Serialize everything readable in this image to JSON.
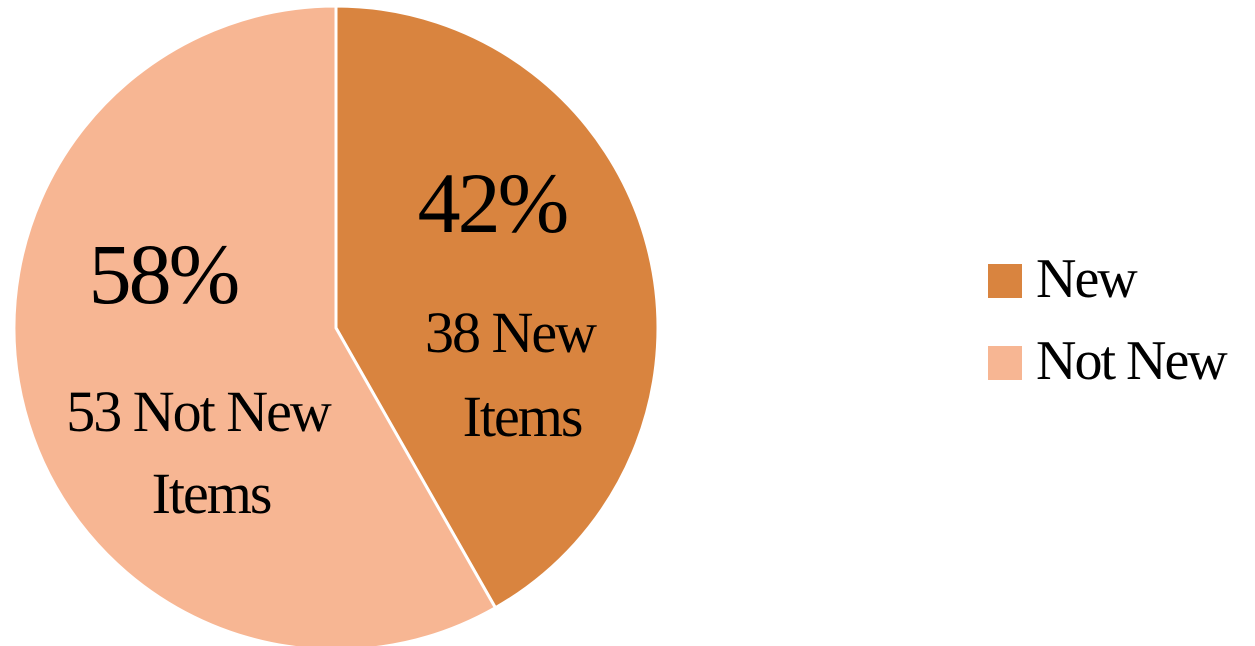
{
  "chart_data": {
    "type": "pie",
    "title": "",
    "slices": [
      {
        "name": "New",
        "value": 38,
        "percent_label": "42%",
        "detail_lines": [
          "38 New",
          "Items"
        ],
        "color": "#D9843F"
      },
      {
        "name": "Not New",
        "value": 53,
        "percent_label": "58%",
        "detail_lines": [
          "53 Not New",
          "Items"
        ],
        "color": "#F7B693"
      }
    ],
    "legend": {
      "placement": "right",
      "entries": [
        "New",
        "Not New"
      ]
    }
  }
}
